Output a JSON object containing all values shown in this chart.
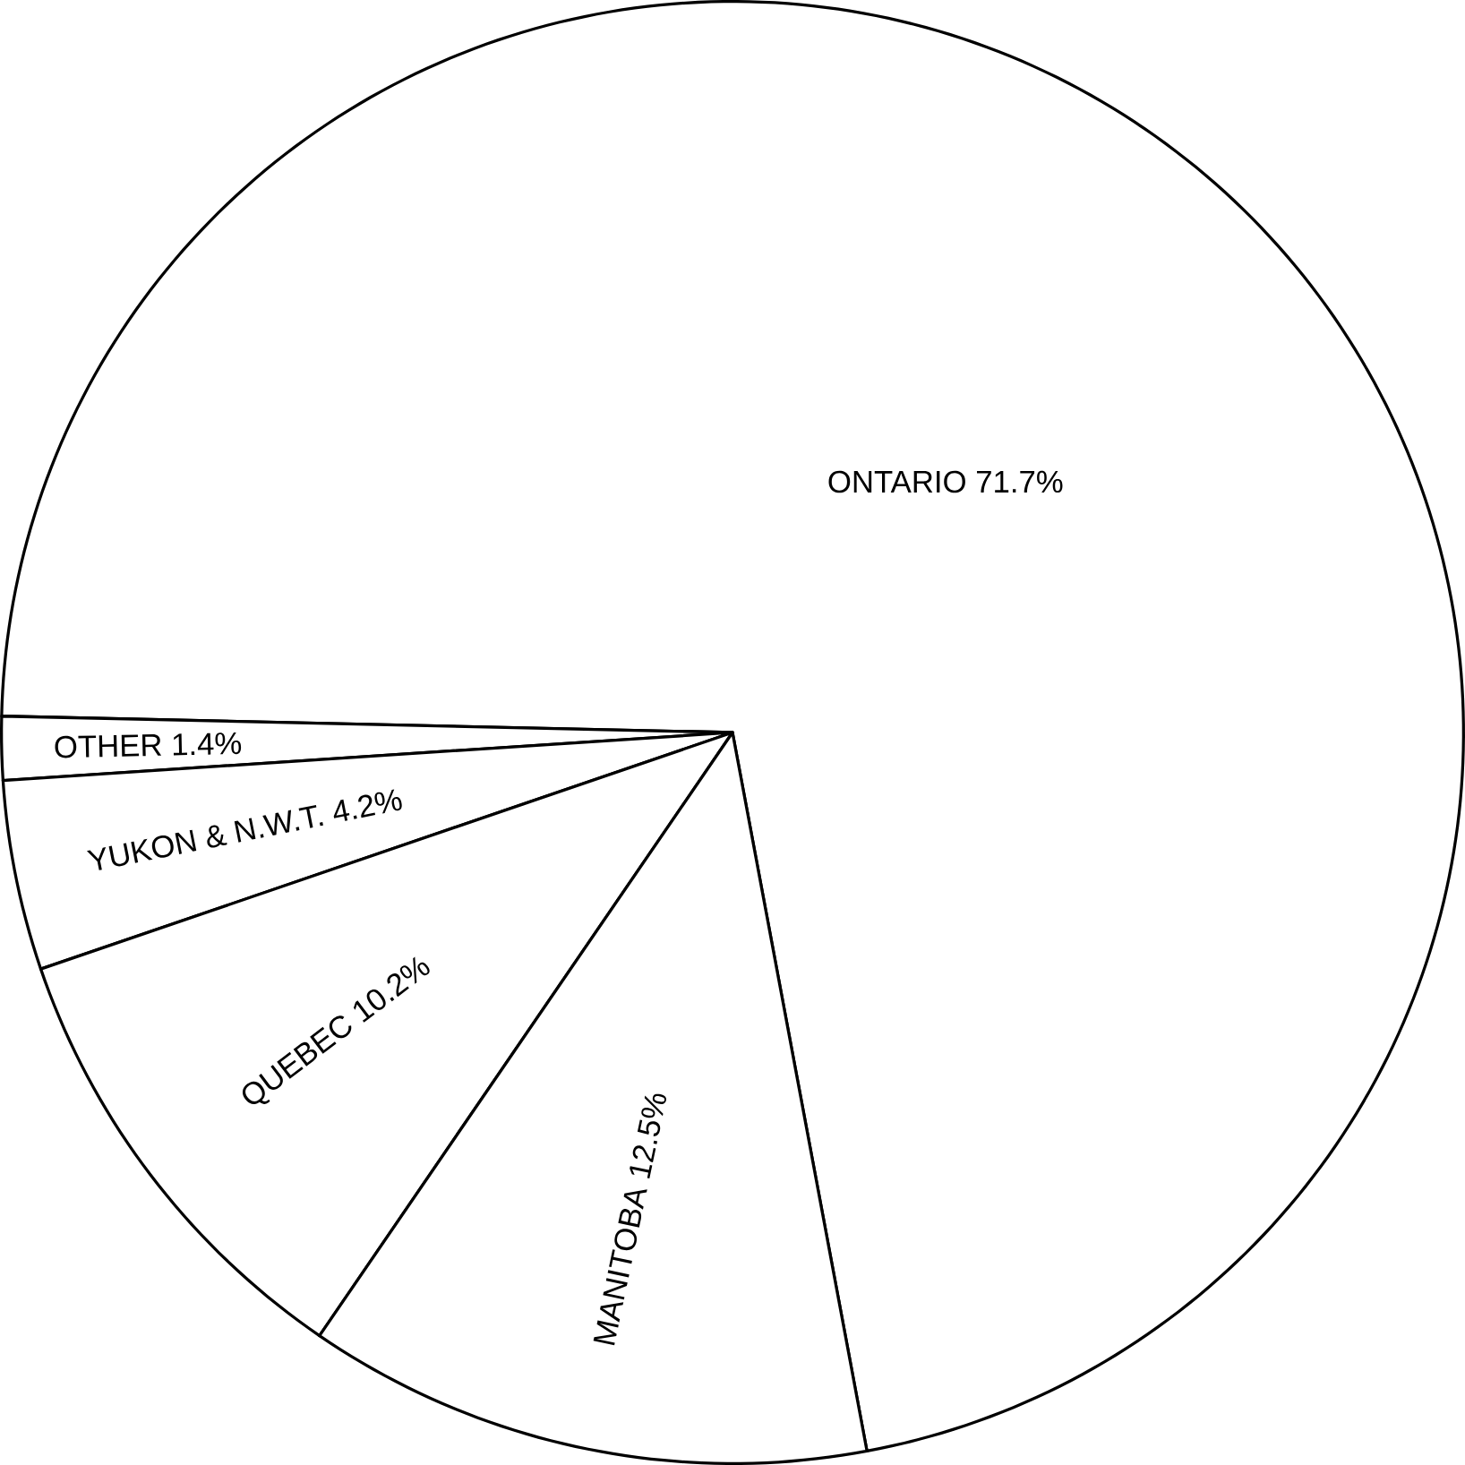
{
  "chart_data": {
    "type": "pie",
    "categories": [
      "ONTARIO",
      "OTHER",
      "YUKON & N.W.T.",
      "QUEBEC",
      "MANITOBA"
    ],
    "values": [
      71.7,
      1.4,
      4.2,
      10.2,
      12.5
    ],
    "value_labels": [
      "71.7%",
      "1.4%",
      "4.2%",
      "10.2%",
      "12.5%"
    ],
    "colors": [
      "#ffffff",
      "#ffffff",
      "#ffffff",
      "#ffffff",
      "#ffffff"
    ]
  }
}
